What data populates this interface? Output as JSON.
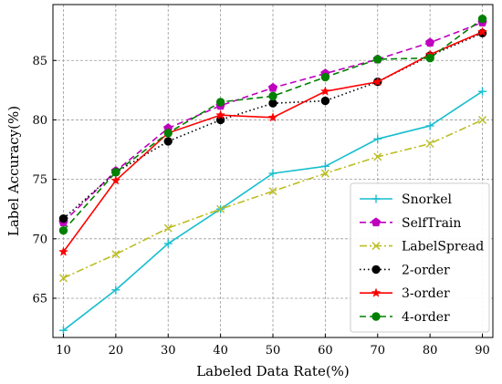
{
  "chart_data": {
    "type": "line",
    "title": "",
    "xlabel": "Labeled Data Rate(%)",
    "ylabel": "Label Accuracy(%)",
    "x": [
      10,
      20,
      30,
      40,
      50,
      60,
      70,
      80,
      90
    ],
    "x_ticks": [
      "10",
      "20",
      "30",
      "40",
      "50",
      "60",
      "70",
      "80",
      "90"
    ],
    "y_ticks": [
      "65",
      "70",
      "75",
      "80",
      "85"
    ],
    "xlim": [
      8,
      92
    ],
    "ylim": [
      61.7,
      89.7
    ],
    "grid": true,
    "legend_position": "lower-right",
    "series": [
      {
        "name": "Snorkel",
        "color": "#17becf",
        "dash": "solid",
        "marker": "plus",
        "values": [
          62.3,
          65.7,
          69.6,
          72.5,
          75.5,
          76.1,
          78.4,
          79.5,
          82.4
        ]
      },
      {
        "name": "SelfTrain",
        "color": "#bf00bf",
        "dash": "dashed",
        "marker": "pentagon",
        "values": [
          71.4,
          75.7,
          79.3,
          81.2,
          82.7,
          83.9,
          85.1,
          86.5,
          88.2
        ]
      },
      {
        "name": "LabelSpread",
        "color": "#bcbd22",
        "dash": "dashdot",
        "marker": "x",
        "values": [
          66.7,
          68.7,
          70.9,
          72.5,
          74.0,
          75.5,
          76.9,
          78.0,
          80.0
        ]
      },
      {
        "name": "2-order",
        "color": "#000000",
        "dash": "dotted",
        "marker": "circle",
        "values": [
          71.7,
          75.6,
          78.2,
          80.0,
          81.4,
          81.6,
          83.2,
          85.4,
          87.3
        ]
      },
      {
        "name": "3-order",
        "color": "#ff0000",
        "dash": "solid",
        "marker": "star",
        "values": [
          68.9,
          74.9,
          78.9,
          80.4,
          80.2,
          82.4,
          83.2,
          85.5,
          87.4
        ]
      },
      {
        "name": "4-order",
        "color": "#008000",
        "dash": "dashed",
        "marker": "circle",
        "values": [
          70.7,
          75.6,
          78.9,
          81.5,
          82.0,
          83.6,
          85.1,
          85.2,
          88.5
        ]
      }
    ]
  }
}
